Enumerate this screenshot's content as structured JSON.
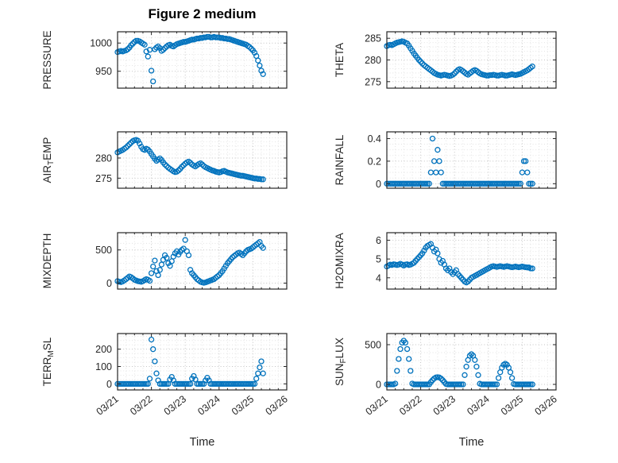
{
  "figure": {
    "title": "Figure 2 medium",
    "xlabel": "Time",
    "marker_color": "#0072BD",
    "axes_color": "#262626",
    "grid": "dotted-major-and-minor",
    "legend": "none"
  },
  "x_ticks": [
    "03/21",
    "03/22",
    "03/23",
    "03/24",
    "03/25",
    "03/26"
  ],
  "x_days": [
    0,
    0.05,
    0.1,
    0.15,
    0.2,
    0.25,
    0.3,
    0.35,
    0.4,
    0.45,
    0.5,
    0.55,
    0.6,
    0.65,
    0.7,
    0.75,
    0.8,
    0.85,
    0.9,
    0.95,
    1,
    1.05,
    1.1,
    1.15,
    1.2,
    1.25,
    1.3,
    1.35,
    1.4,
    1.45,
    1.5,
    1.55,
    1.6,
    1.65,
    1.7,
    1.75,
    1.8,
    1.85,
    1.9,
    1.95,
    2,
    2.05,
    2.1,
    2.15,
    2.2,
    2.25,
    2.3,
    2.35,
    2.4,
    2.45,
    2.5,
    2.55,
    2.6,
    2.65,
    2.7,
    2.75,
    2.8,
    2.85,
    2.9,
    2.95,
    3,
    3.05,
    3.1,
    3.15,
    3.2,
    3.25,
    3.3,
    3.35,
    3.4,
    3.45,
    3.5,
    3.55,
    3.6,
    3.65,
    3.7,
    3.75,
    3.8,
    3.85,
    3.9,
    3.95,
    4,
    4.05,
    4.1,
    4.15,
    4.2,
    4.25,
    4.3
  ],
  "chart_data": [
    {
      "type": "scatter",
      "name": "PRESSURE",
      "ylabel_pre": "PRESSURE",
      "ylabel_sub": "",
      "ylabel_post": "",
      "xlim": [
        0,
        5
      ],
      "ylim": [
        920,
        1020
      ],
      "yticks": [
        950,
        1000
      ],
      "yminor": 10,
      "y": [
        984,
        985,
        986,
        985,
        986,
        987,
        989,
        992,
        996,
        999,
        1002,
        1004,
        1004,
        1003,
        1001,
        999,
        997,
        985,
        976,
        988,
        951,
        932,
        989,
        992,
        994,
        991,
        986,
        988,
        991,
        994,
        996,
        997,
        995,
        994,
        996,
        998,
        999,
        1000,
        1001,
        1002,
        1002,
        1003,
        1004,
        1005,
        1006,
        1006,
        1007,
        1008,
        1008,
        1009,
        1009,
        1010,
        1010,
        1011,
        1011,
        1010,
        1010,
        1011,
        1010,
        1010,
        1010,
        1009,
        1009,
        1008,
        1008,
        1007,
        1007,
        1006,
        1005,
        1004,
        1003,
        1002,
        1001,
        1000,
        999,
        998,
        997,
        995,
        993,
        990,
        987,
        983,
        977,
        969,
        960,
        951,
        945
      ]
    },
    {
      "type": "scatter",
      "name": "THETA",
      "ylabel_pre": "THETA",
      "ylabel_sub": "",
      "ylabel_post": "",
      "xlim": [
        0,
        5
      ],
      "ylim": [
        273.5,
        286.5
      ],
      "yticks": [
        275,
        280,
        285
      ],
      "yminor": 1,
      "y": [
        283.2,
        283.4,
        283.5,
        283.4,
        283.6,
        283.8,
        284,
        284.1,
        284.2,
        284.3,
        284.2,
        284,
        283.8,
        283.3,
        282.7,
        282.1,
        281.5,
        281,
        280.5,
        280,
        279.6,
        279.2,
        278.8,
        278.5,
        278.2,
        277.9,
        277.6,
        277.3,
        277,
        276.8,
        276.6,
        276.5,
        276.4,
        276.5,
        276.6,
        276.5,
        276.4,
        276.3,
        276.4,
        276.6,
        276.9,
        277.3,
        277.7,
        277.9,
        277.7,
        277.4,
        277.1,
        276.8,
        276.6,
        276.9,
        277.2,
        277.5,
        277.7,
        277.5,
        277.2,
        276.9,
        276.7,
        276.6,
        276.5,
        276.4,
        276.4,
        276.5,
        276.5,
        276.6,
        276.5,
        276.4,
        276.4,
        276.5,
        276.6,
        276.5,
        276.4,
        276.4,
        276.5,
        276.6,
        276.7,
        276.6,
        276.5,
        276.6,
        276.7,
        276.8,
        277,
        277.2,
        277.4,
        277.6,
        277.9,
        278.2,
        278.5
      ]
    },
    {
      "type": "scatter",
      "name": "AIR_TEMP",
      "ylabel_pre": "AIR",
      "ylabel_sub": "T",
      "ylabel_post": "EMP",
      "xlim": [
        0,
        5
      ],
      "ylim": [
        272.5,
        286.5
      ],
      "yticks": [
        275,
        280
      ],
      "yminor": 1,
      "y": [
        281.4,
        281.6,
        281.8,
        282,
        282.3,
        282.6,
        283,
        283.4,
        283.8,
        284.2,
        284.4,
        284.5,
        284.3,
        283.6,
        282.8,
        282.2,
        282,
        282.3,
        282.1,
        281.6,
        281,
        280.4,
        279.8,
        279.3,
        279.6,
        279.9,
        279.5,
        278.9,
        278.4,
        278,
        277.6,
        277.3,
        277,
        276.7,
        276.5,
        276.6,
        276.9,
        277.3,
        277.8,
        278.2,
        278.6,
        278.9,
        279.1,
        278.8,
        278.4,
        278.1,
        277.9,
        278.2,
        278.5,
        278.7,
        278.4,
        278,
        277.7,
        277.5,
        277.3,
        277.1,
        276.9,
        276.8,
        276.6,
        276.5,
        276.4,
        276.5,
        276.7,
        276.8,
        276.6,
        276.4,
        276.3,
        276.2,
        276.1,
        276,
        275.9,
        275.8,
        275.7,
        275.6,
        275.6,
        275.5,
        275.4,
        275.3,
        275.2,
        275.1,
        275,
        274.9,
        274.9,
        274.8,
        274.8,
        274.7,
        274.7
      ]
    },
    {
      "type": "scatter",
      "name": "RAINFALL",
      "ylabel_pre": "RAINFALL",
      "ylabel_sub": "",
      "ylabel_post": "",
      "xlim": [
        0,
        5
      ],
      "ylim": [
        -0.04,
        0.46
      ],
      "yticks": [
        0,
        0.2,
        0.4
      ],
      "yminor": 0.05,
      "y": [
        0,
        0,
        0,
        0,
        0,
        0,
        0,
        0,
        0,
        0,
        0,
        0,
        0,
        0,
        0,
        0,
        0,
        0,
        0,
        0,
        0,
        0,
        0,
        0,
        0,
        0,
        0.1,
        0.4,
        0.2,
        0.1,
        0.3,
        0.2,
        0.1,
        0,
        0,
        0,
        0,
        0,
        0,
        0,
        0,
        0,
        0,
        0,
        0,
        0,
        0,
        0,
        0,
        0,
        0,
        0,
        0,
        0,
        0,
        0,
        0,
        0,
        0,
        0,
        0,
        0,
        0,
        0,
        0,
        0,
        0,
        0,
        0,
        0,
        0,
        0,
        0,
        0,
        0,
        0,
        0,
        0,
        0,
        0,
        0.1,
        0.2,
        0.2,
        0.1,
        0,
        0,
        0
      ]
    },
    {
      "type": "scatter",
      "name": "MIXDEPTH",
      "ylabel_pre": "MIXDEPTH",
      "ylabel_sub": "",
      "ylabel_post": "",
      "xlim": [
        0,
        5
      ],
      "ylim": [
        -90,
        760
      ],
      "yticks": [
        0,
        500
      ],
      "yminor": 100,
      "y": [
        30,
        20,
        15,
        25,
        40,
        60,
        80,
        100,
        90,
        70,
        50,
        40,
        30,
        25,
        20,
        30,
        45,
        60,
        50,
        35,
        150,
        250,
        340,
        180,
        120,
        200,
        280,
        350,
        420,
        380,
        300,
        260,
        330,
        400,
        450,
        480,
        430,
        470,
        500,
        520,
        650,
        480,
        420,
        200,
        150,
        120,
        90,
        60,
        40,
        20,
        10,
        5,
        10,
        20,
        30,
        40,
        50,
        60,
        80,
        100,
        120,
        150,
        180,
        220,
        260,
        300,
        330,
        360,
        390,
        410,
        430,
        450,
        460,
        440,
        420,
        450,
        480,
        500,
        510,
        520,
        540,
        560,
        580,
        600,
        620,
        560,
        530
      ]
    },
    {
      "type": "scatter",
      "name": "H2OMIXRA",
      "ylabel_pre": "H2OMIXRA",
      "ylabel_sub": "",
      "ylabel_post": "",
      "xlim": [
        0,
        5
      ],
      "ylim": [
        3.4,
        6.4
      ],
      "yticks": [
        4,
        5,
        6
      ],
      "yminor": 0.2,
      "y": [
        4.6,
        4.65,
        4.7,
        4.68,
        4.72,
        4.7,
        4.68,
        4.7,
        4.75,
        4.7,
        4.65,
        4.7,
        4.72,
        4.68,
        4.7,
        4.75,
        4.8,
        4.9,
        5,
        5.1,
        5.2,
        5.3,
        5.45,
        5.6,
        5.7,
        5.75,
        5.8,
        5.6,
        5.4,
        5.5,
        5.3,
        5,
        4.8,
        4.9,
        4.7,
        4.5,
        4.4,
        4.5,
        4.3,
        4.2,
        4.3,
        4.4,
        4.2,
        4.1,
        4,
        3.9,
        3.8,
        3.75,
        3.8,
        3.9,
        4,
        4.05,
        4.1,
        4.15,
        4.2,
        4.25,
        4.3,
        4.35,
        4.4,
        4.45,
        4.5,
        4.55,
        4.6,
        4.62,
        4.6,
        4.58,
        4.6,
        4.62,
        4.6,
        4.58,
        4.6,
        4.62,
        4.6,
        4.58,
        4.56,
        4.58,
        4.6,
        4.58,
        4.56,
        4.58,
        4.6,
        4.58,
        4.56,
        4.55,
        4.55,
        4.5,
        4.5
      ]
    },
    {
      "type": "scatter",
      "name": "TERR_MSL",
      "ylabel_pre": "TERR",
      "ylabel_sub": "M",
      "ylabel_post": "SL",
      "xlim": [
        0,
        5
      ],
      "ylim": [
        -35,
        290
      ],
      "yticks": [
        0,
        100,
        200
      ],
      "yminor": 25,
      "y": [
        0,
        0,
        0,
        0,
        0,
        0,
        0,
        0,
        0,
        0,
        0,
        0,
        0,
        0,
        0,
        0,
        0,
        0,
        0,
        30,
        255,
        200,
        130,
        60,
        20,
        0,
        0,
        0,
        0,
        0,
        0,
        25,
        40,
        20,
        0,
        0,
        0,
        0,
        0,
        0,
        0,
        0,
        0,
        0,
        30,
        45,
        25,
        0,
        0,
        0,
        0,
        0,
        20,
        35,
        20,
        0,
        0,
        0,
        0,
        0,
        0,
        0,
        0,
        0,
        0,
        0,
        0,
        0,
        0,
        0,
        0,
        0,
        0,
        0,
        0,
        0,
        0,
        0,
        0,
        0,
        0,
        0,
        30,
        60,
        95,
        130,
        60
      ]
    },
    {
      "type": "scatter",
      "name": "SUN_FLUX",
      "ylabel_pre": "SUN",
      "ylabel_sub": "F",
      "ylabel_post": "LUX",
      "xlim": [
        0,
        5
      ],
      "ylim": [
        -70,
        640
      ],
      "yticks": [
        0,
        500
      ],
      "yminor": 100,
      "y": [
        0,
        0,
        0,
        0,
        0,
        10,
        170,
        320,
        445,
        525,
        550,
        525,
        445,
        320,
        170,
        10,
        0,
        0,
        0,
        0,
        0,
        0,
        0,
        0,
        0,
        0,
        28,
        53,
        74,
        87,
        90,
        87,
        74,
        53,
        28,
        5,
        0,
        0,
        0,
        0,
        0,
        0,
        0,
        0,
        0,
        0,
        117,
        223,
        307,
        361,
        380,
        361,
        307,
        223,
        117,
        8,
        0,
        0,
        0,
        0,
        0,
        0,
        0,
        0,
        0,
        0,
        80,
        153,
        210,
        247,
        260,
        247,
        210,
        153,
        80,
        5,
        0,
        0,
        0,
        0,
        0,
        0,
        0,
        0,
        0,
        0,
        0
      ]
    }
  ]
}
